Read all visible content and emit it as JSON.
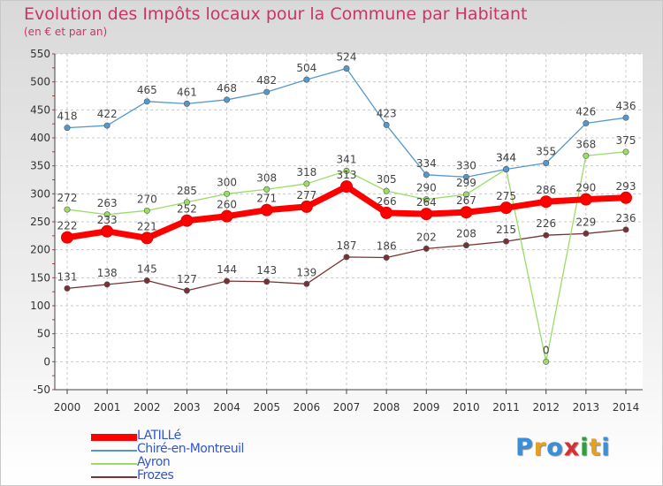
{
  "chart_data": {
    "type": "line",
    "title": "Evolution des Impôts locaux pour la Commune par Habitant",
    "subtitle": "(en € et par an)",
    "xlabel": "",
    "ylabel": "",
    "x": [
      2000,
      2001,
      2002,
      2003,
      2004,
      2005,
      2006,
      2007,
      2008,
      2009,
      2010,
      2011,
      2012,
      2013,
      2014
    ],
    "ylim": [
      -50,
      550
    ],
    "yticks": [
      -50,
      0,
      50,
      100,
      150,
      200,
      250,
      300,
      350,
      400,
      450,
      500,
      550
    ],
    "grid": true,
    "legend_position": "bottom-left",
    "brand": "Proxiti",
    "series": [
      {
        "name": "LATILLé",
        "color": "#ff0000",
        "values": [
          222,
          233,
          221,
          252,
          260,
          271,
          277,
          313,
          266,
          264,
          267,
          275,
          286,
          290,
          293
        ],
        "labels": [
          "222",
          "233",
          "221",
          "252",
          "260",
          "271",
          "277",
          "313",
          "266",
          "264",
          "267",
          "275",
          "286",
          "290",
          "293"
        ]
      },
      {
        "name": "Chiré-en-Montreuil",
        "color": "#5599cc",
        "values": [
          418,
          422,
          465,
          461,
          468,
          482,
          504,
          524,
          423,
          334,
          330,
          344,
          355,
          426,
          436
        ],
        "labels": [
          "418",
          "422",
          "465",
          "461",
          "468",
          "482",
          "504",
          "524",
          "423",
          "334",
          "330",
          "344",
          "355",
          "426",
          "436"
        ]
      },
      {
        "name": "Ayron",
        "color": "#99dd66",
        "values": [
          272,
          263,
          270,
          285,
          300,
          308,
          318,
          341,
          305,
          290,
          299,
          344,
          0,
          368,
          375
        ],
        "labels": [
          "272",
          "263",
          "270",
          "285",
          "300",
          "308",
          "318",
          "341",
          "305",
          "290",
          "299",
          "344",
          "0",
          "368",
          "375"
        ]
      },
      {
        "name": "Frozes",
        "color": "#773333",
        "values": [
          131,
          138,
          145,
          127,
          144,
          143,
          139,
          187,
          186,
          202,
          208,
          215,
          226,
          229,
          236
        ],
        "labels": [
          "131",
          "138",
          "145",
          "127",
          "144",
          "143",
          "139",
          "187",
          "186",
          "202",
          "208",
          "215",
          "226",
          "229",
          "236"
        ]
      }
    ]
  }
}
